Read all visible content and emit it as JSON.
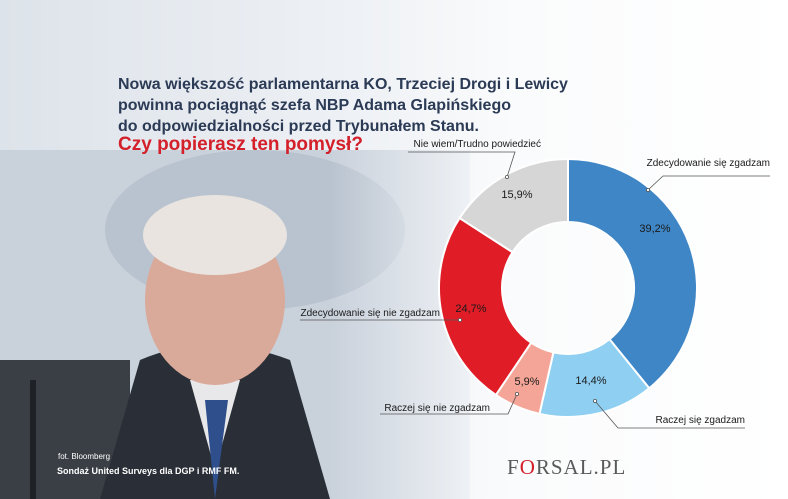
{
  "title_lines": [
    "Nowa większość parlamentarna KO, Trzeciej Drogi i Lewicy",
    "powinna pociągnąć szefa NBP Adama Glapińskiego",
    "do odpowiedzialności przed Trybunałem Stanu."
  ],
  "question": "Czy popierasz ten pomysł?",
  "photo_credit": "fot. Bloomberg",
  "source": "Sondaż United Surveys dla DGP i RMF FM.",
  "logo": {
    "prefix": "F",
    "o": "O",
    "suffix": "RSAL.PL"
  },
  "chart_data": {
    "type": "pie",
    "variant": "donut",
    "slices": [
      {
        "label": "Zdecydowanie się zgadzam",
        "value": 39.2,
        "value_label": "39,2%",
        "color": "#3f86c6"
      },
      {
        "label": "Raczej się zgadzam",
        "value": 14.4,
        "value_label": "14,4%",
        "color": "#8fcff2"
      },
      {
        "label": "Raczej się nie zgadzam",
        "value": 5.9,
        "value_label": "5,9%",
        "color": "#f4a597"
      },
      {
        "label": "Zdecydowanie się nie zgadzam",
        "value": 24.7,
        "value_label": "24,7%",
        "color": "#e01d26"
      },
      {
        "label": "Nie wiem/Trudno powiedzieć",
        "value": 15.9,
        "value_label": "15,9%",
        "color": "#d6d6d6"
      }
    ]
  }
}
